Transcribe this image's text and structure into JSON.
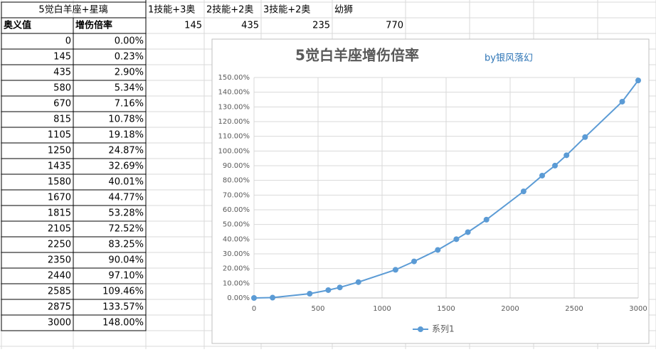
{
  "sheet": {
    "title": "5觉白羊座+星璃",
    "col_a_header": "奥义值",
    "col_b_header": "增伤倍率",
    "headers": [
      "1技能+3奥",
      "2技能+2奥",
      "3技能+2奥",
      "幼狮"
    ],
    "header_values": [
      145,
      435,
      235,
      770
    ]
  },
  "chart_data": {
    "type": "line",
    "title": "5觉白羊座增伤倍率",
    "subtitle": "by银风落幻",
    "x": [
      0,
      145,
      435,
      580,
      670,
      815,
      1105,
      1250,
      1435,
      1580,
      1670,
      1815,
      2105,
      2250,
      2350,
      2440,
      2585,
      2875,
      3000
    ],
    "series": [
      {
        "name": "系列1",
        "color": "#5b9bd5",
        "values": [
          0,
          0.23,
          2.9,
          5.34,
          7.16,
          10.78,
          19.18,
          24.87,
          32.69,
          40.01,
          44.77,
          53.28,
          72.52,
          83.25,
          90.04,
          97.1,
          109.46,
          133.57,
          148.0
        ],
        "value_labels": [
          "0.00%",
          "0.23%",
          "2.90%",
          "5.34%",
          "7.16%",
          "10.78%",
          "19.18%",
          "24.87%",
          "32.69%",
          "40.01%",
          "44.77%",
          "53.28%",
          "72.52%",
          "83.25%",
          "90.04%",
          "97.10%",
          "109.46%",
          "133.57%",
          "148.00%"
        ]
      }
    ],
    "xlim": [
      0,
      3000
    ],
    "xticks": [
      0,
      500,
      1000,
      1500,
      2000,
      2500,
      3000
    ],
    "ylim": [
      0,
      150
    ],
    "yticks": [
      {
        "value": 0,
        "label": "0.00%"
      },
      {
        "value": 10,
        "label": "10.00%"
      },
      {
        "value": 20,
        "label": "20.00%"
      },
      {
        "value": 30,
        "label": "30.00%"
      },
      {
        "value": 40,
        "label": "40.00%"
      },
      {
        "value": 50,
        "label": "50.00%"
      },
      {
        "value": 60,
        "label": "60.00%"
      },
      {
        "value": 70,
        "label": "70.00%"
      },
      {
        "value": 80,
        "label": "80.00%"
      },
      {
        "value": 90,
        "label": "90.00%"
      },
      {
        "value": 100,
        "label": "100.00%"
      },
      {
        "value": 110,
        "label": "110.00%"
      },
      {
        "value": 120,
        "label": "120.00%"
      },
      {
        "value": 130,
        "label": "130.00%"
      },
      {
        "value": 140,
        "label": "140.00%"
      },
      {
        "value": 150,
        "label": "150.00%"
      }
    ],
    "grid": true,
    "legend": "bottom"
  }
}
